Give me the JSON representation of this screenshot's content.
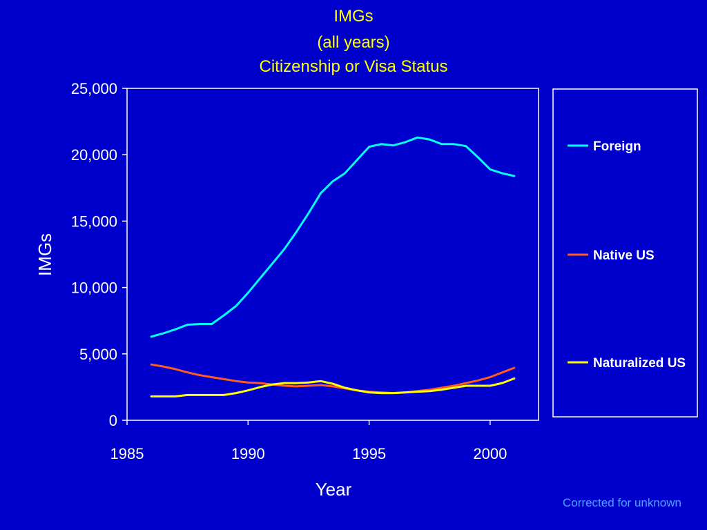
{
  "colors": {
    "background": "#0000cc",
    "title": "#ffff00",
    "text": "#ffffff",
    "footnote": "#4fa3ff"
  },
  "chart_data": {
    "type": "line",
    "title": [
      "IMGs",
      "(all years)",
      "Citizenship or Visa Status"
    ],
    "xlabel": "Year",
    "ylabel": "IMGs",
    "xlim": [
      1985,
      2002
    ],
    "ylim": [
      0,
      25000
    ],
    "x_ticks": [
      1985,
      1990,
      1995,
      2000
    ],
    "x_tick_labels": [
      "1985",
      "1990",
      "1995",
      "2000"
    ],
    "y_ticks": [
      0,
      5000,
      10000,
      15000,
      20000,
      25000
    ],
    "y_tick_labels": [
      "0",
      "5,000",
      "10,000",
      "15,000",
      "20,000",
      "25,000"
    ],
    "grid": false,
    "legend_position": "right",
    "x": [
      1986,
      1986.5,
      1987,
      1987.5,
      1988,
      1988.5,
      1989,
      1989.5,
      1990,
      1990.5,
      1991,
      1991.5,
      1992,
      1992.5,
      1993,
      1993.5,
      1994,
      1994.5,
      1995,
      1995.5,
      1996,
      1996.5,
      1997,
      1997.5,
      1998,
      1998.5,
      1999,
      1999.5,
      2000,
      2000.5,
      2001
    ],
    "series": [
      {
        "name": "Foreign",
        "color": "#00ffff",
        "values": [
          6300,
          6550,
          6850,
          7200,
          7250,
          7250,
          7900,
          8600,
          9600,
          10700,
          11800,
          12900,
          14200,
          15600,
          17100,
          18000,
          18600,
          19600,
          20600,
          20800,
          20700,
          20950,
          21300,
          21150,
          20800,
          20800,
          20650,
          19800,
          18900,
          18600,
          18400
        ]
      },
      {
        "name": "Native US",
        "color": "#ff5a1f",
        "values": [
          4200,
          4050,
          3850,
          3600,
          3400,
          3250,
          3100,
          2950,
          2850,
          2800,
          2700,
          2600,
          2550,
          2600,
          2650,
          2550,
          2400,
          2250,
          2150,
          2100,
          2050,
          2100,
          2200,
          2300,
          2450,
          2600,
          2800,
          3000,
          3250,
          3600,
          3950
        ]
      },
      {
        "name": "Naturalized US",
        "color": "#ffff00",
        "values": [
          1800,
          1800,
          1800,
          1900,
          1900,
          1900,
          1900,
          2050,
          2250,
          2500,
          2700,
          2800,
          2800,
          2850,
          2950,
          2750,
          2450,
          2250,
          2100,
          2050,
          2050,
          2100,
          2150,
          2200,
          2300,
          2450,
          2600,
          2600,
          2600,
          2800,
          3150
        ]
      }
    ]
  },
  "footnote": "Corrected for unknown"
}
